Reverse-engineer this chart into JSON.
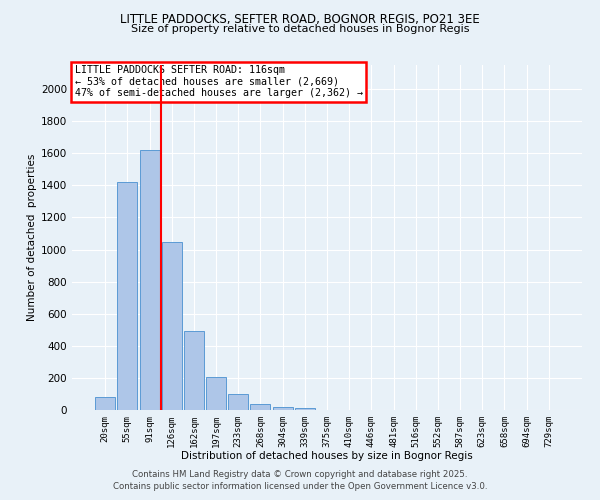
{
  "title": "LITTLE PADDOCKS, SEFTER ROAD, BOGNOR REGIS, PO21 3EE",
  "subtitle": "Size of property relative to detached houses in Bognor Regis",
  "xlabel": "Distribution of detached houses by size in Bognor Regis",
  "ylabel": "Number of detached  properties",
  "categories": [
    "20sqm",
    "55sqm",
    "91sqm",
    "126sqm",
    "162sqm",
    "197sqm",
    "233sqm",
    "268sqm",
    "304sqm",
    "339sqm",
    "375sqm",
    "410sqm",
    "446sqm",
    "481sqm",
    "516sqm",
    "552sqm",
    "587sqm",
    "623sqm",
    "658sqm",
    "694sqm",
    "729sqm"
  ],
  "values": [
    80,
    1420,
    1620,
    1050,
    490,
    205,
    100,
    35,
    20,
    15,
    0,
    0,
    0,
    0,
    0,
    0,
    0,
    0,
    0,
    0,
    0
  ],
  "bar_color": "#aec6e8",
  "bar_edge_color": "#5b9bd5",
  "red_line_x": 2.5,
  "annotation_title": "LITTLE PADDOCKS SEFTER ROAD: 116sqm",
  "annotation_line1": "← 53% of detached houses are smaller (2,669)",
  "annotation_line2": "47% of semi-detached houses are larger (2,362) →",
  "footer_line1": "Contains HM Land Registry data © Crown copyright and database right 2025.",
  "footer_line2": "Contains public sector information licensed under the Open Government Licence v3.0.",
  "bg_color": "#e8f1f8",
  "plot_bg_color": "#e8f1f8",
  "ylim": [
    0,
    2150
  ],
  "yticks": [
    0,
    200,
    400,
    600,
    800,
    1000,
    1200,
    1400,
    1600,
    1800,
    2000
  ]
}
